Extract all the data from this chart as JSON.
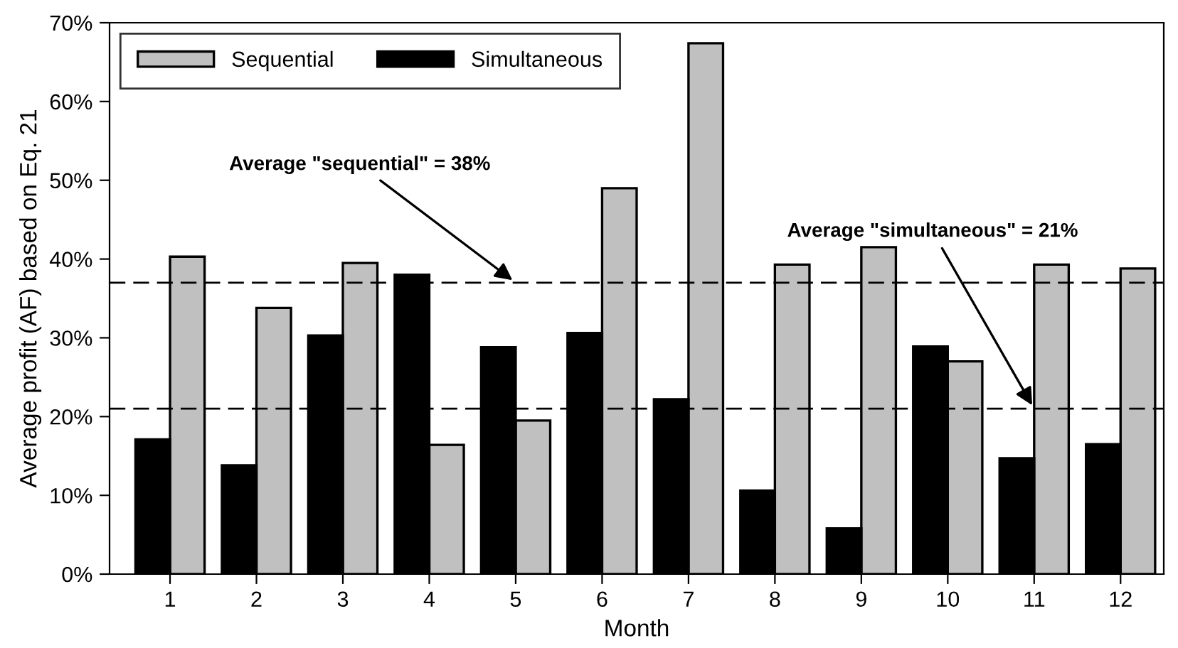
{
  "chart_data": {
    "type": "bar",
    "xlabel": "Month",
    "ylabel": "Average profit (AF) based on Eq. 21",
    "categories": [
      "1",
      "2",
      "3",
      "4",
      "5",
      "6",
      "7",
      "8",
      "9",
      "10",
      "11",
      "12"
    ],
    "series": [
      {
        "name": "Sequential",
        "color": "#c0c0c0",
        "values": [
          40.3,
          33.8,
          39.5,
          16.4,
          19.5,
          49.0,
          67.4,
          39.3,
          41.5,
          27.0,
          39.3,
          38.8
        ]
      },
      {
        "name": "Simultaneous",
        "color": "#000000",
        "values": [
          17.1,
          13.8,
          30.3,
          38.0,
          28.8,
          30.6,
          22.2,
          10.6,
          5.8,
          28.9,
          14.7,
          16.5
        ]
      }
    ],
    "ylim": [
      0,
      70
    ],
    "yticks": [
      {
        "value": 0,
        "label": "0%"
      },
      {
        "value": 10,
        "label": "10%"
      },
      {
        "value": 20,
        "label": "20%"
      },
      {
        "value": 30,
        "label": "30%"
      },
      {
        "value": 40,
        "label": "40%"
      },
      {
        "value": 50,
        "label": "50%"
      },
      {
        "value": 60,
        "label": "60%"
      },
      {
        "value": 70,
        "label": "70%"
      }
    ],
    "ref_lines": [
      {
        "axis": "y",
        "value": 37,
        "line_style": "dashed",
        "color": "#000000"
      },
      {
        "axis": "y",
        "value": 21,
        "line_style": "dashed",
        "color": "#000000"
      }
    ],
    "annotations": [
      {
        "text": "Average \"sequential\" = 38%",
        "x": "5",
        "y": 37
      },
      {
        "text": "Average \"simultaneous\" = 21%",
        "x": "11",
        "y": 21
      }
    ],
    "legend": "top left",
    "grid": false
  }
}
